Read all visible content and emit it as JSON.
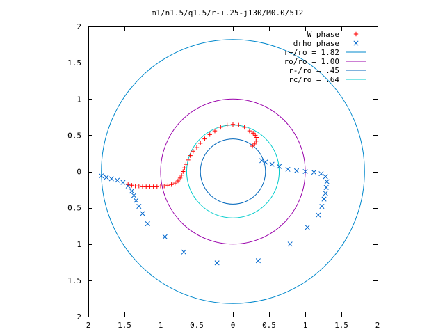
{
  "chart_data": {
    "type": "scatter",
    "title": "m1/n1.5/q1.5/r-+.25-j130/M0.0/512",
    "xlim": [
      -2,
      2
    ],
    "ylim": [
      -2,
      2
    ],
    "x_tick_values": [
      -2,
      -1.5,
      -1,
      -0.5,
      0,
      0.5,
      1,
      1.5,
      2
    ],
    "x_tick_labels": [
      "2",
      "1.5",
      "1",
      "0.5",
      "0",
      "0.5",
      "1",
      "1.5",
      "2"
    ],
    "y_tick_values": [
      2,
      1.5,
      1,
      0.5,
      0,
      -0.5,
      -1,
      -1.5,
      -2
    ],
    "y_tick_labels": [
      "2",
      "1.5",
      "1",
      "0.5",
      "0",
      "0.5",
      "1",
      "1.5",
      "2"
    ],
    "grid": false,
    "legend_position": "top-right",
    "series": [
      {
        "name": "W phase",
        "marker": "+",
        "color": "#ff0000",
        "points": [
          [
            -1.45,
            -0.18
          ],
          [
            -1.4,
            -0.19
          ],
          [
            -1.35,
            -0.2
          ],
          [
            -1.3,
            -0.2
          ],
          [
            -1.25,
            -0.21
          ],
          [
            -1.2,
            -0.21
          ],
          [
            -1.15,
            -0.21
          ],
          [
            -1.1,
            -0.21
          ],
          [
            -1.05,
            -0.21
          ],
          [
            -1.0,
            -0.2
          ],
          [
            -0.95,
            -0.2
          ],
          [
            -0.9,
            -0.19
          ],
          [
            -0.85,
            -0.18
          ],
          [
            -0.8,
            -0.16
          ],
          [
            -0.76,
            -0.13
          ],
          [
            -0.73,
            -0.09
          ],
          [
            -0.71,
            -0.05
          ],
          [
            -0.69,
            0.0
          ],
          [
            -0.67,
            0.05
          ],
          [
            -0.65,
            0.1
          ],
          [
            -0.62,
            0.16
          ],
          [
            -0.59,
            0.22
          ],
          [
            -0.55,
            0.28
          ],
          [
            -0.5,
            0.33
          ],
          [
            -0.45,
            0.39
          ],
          [
            -0.39,
            0.45
          ],
          [
            -0.32,
            0.51
          ],
          [
            -0.25,
            0.56
          ],
          [
            -0.17,
            0.61
          ],
          [
            -0.08,
            0.64
          ],
          [
            0.0,
            0.65
          ],
          [
            0.08,
            0.64
          ],
          [
            0.16,
            0.61
          ],
          [
            0.23,
            0.56
          ],
          [
            0.28,
            0.53
          ],
          [
            0.31,
            0.5
          ],
          [
            0.33,
            0.47
          ],
          [
            0.32,
            0.42
          ],
          [
            0.3,
            0.38
          ],
          [
            0.27,
            0.35
          ]
        ]
      },
      {
        "name": "drho phase",
        "marker": "x",
        "color": "#0066cc",
        "points": [
          [
            -1.82,
            -0.06
          ],
          [
            -1.75,
            -0.08
          ],
          [
            -1.68,
            -0.1
          ],
          [
            -1.6,
            -0.12
          ],
          [
            -1.52,
            -0.15
          ],
          [
            -1.45,
            -0.2
          ],
          [
            -1.4,
            -0.27
          ],
          [
            -1.37,
            -0.33
          ],
          [
            -1.34,
            -0.4
          ],
          [
            -1.3,
            -0.48
          ],
          [
            -1.25,
            -0.58
          ],
          [
            -1.18,
            -0.72
          ],
          [
            -0.94,
            -0.9
          ],
          [
            -0.68,
            -1.11
          ],
          [
            -0.22,
            -1.26
          ],
          [
            0.35,
            -1.23
          ],
          [
            0.79,
            -1.0
          ],
          [
            1.03,
            -0.77
          ],
          [
            1.18,
            -0.6
          ],
          [
            1.23,
            -0.48
          ],
          [
            1.26,
            -0.38
          ],
          [
            1.28,
            -0.3
          ],
          [
            1.29,
            -0.22
          ],
          [
            1.3,
            -0.14
          ],
          [
            1.28,
            -0.07
          ],
          [
            1.22,
            -0.03
          ],
          [
            1.12,
            -0.01
          ],
          [
            1.0,
            0.0
          ],
          [
            0.88,
            0.01
          ],
          [
            0.76,
            0.03
          ],
          [
            0.64,
            0.07
          ],
          [
            0.54,
            0.1
          ],
          [
            0.45,
            0.13
          ],
          [
            0.4,
            0.15
          ]
        ]
      },
      {
        "name": "r+/ro = 1.82",
        "type": "circle",
        "radius": 1.82,
        "color": "#0088cc"
      },
      {
        "name": "ro/ro = 1.00",
        "type": "circle",
        "radius": 1.0,
        "color": "#9900aa"
      },
      {
        "name": "r-/ro = .45",
        "type": "circle",
        "radius": 0.45,
        "color": "#0066bb"
      },
      {
        "name": "rc/ro = .64",
        "type": "circle",
        "radius": 0.64,
        "color": "#00cccc"
      }
    ]
  }
}
